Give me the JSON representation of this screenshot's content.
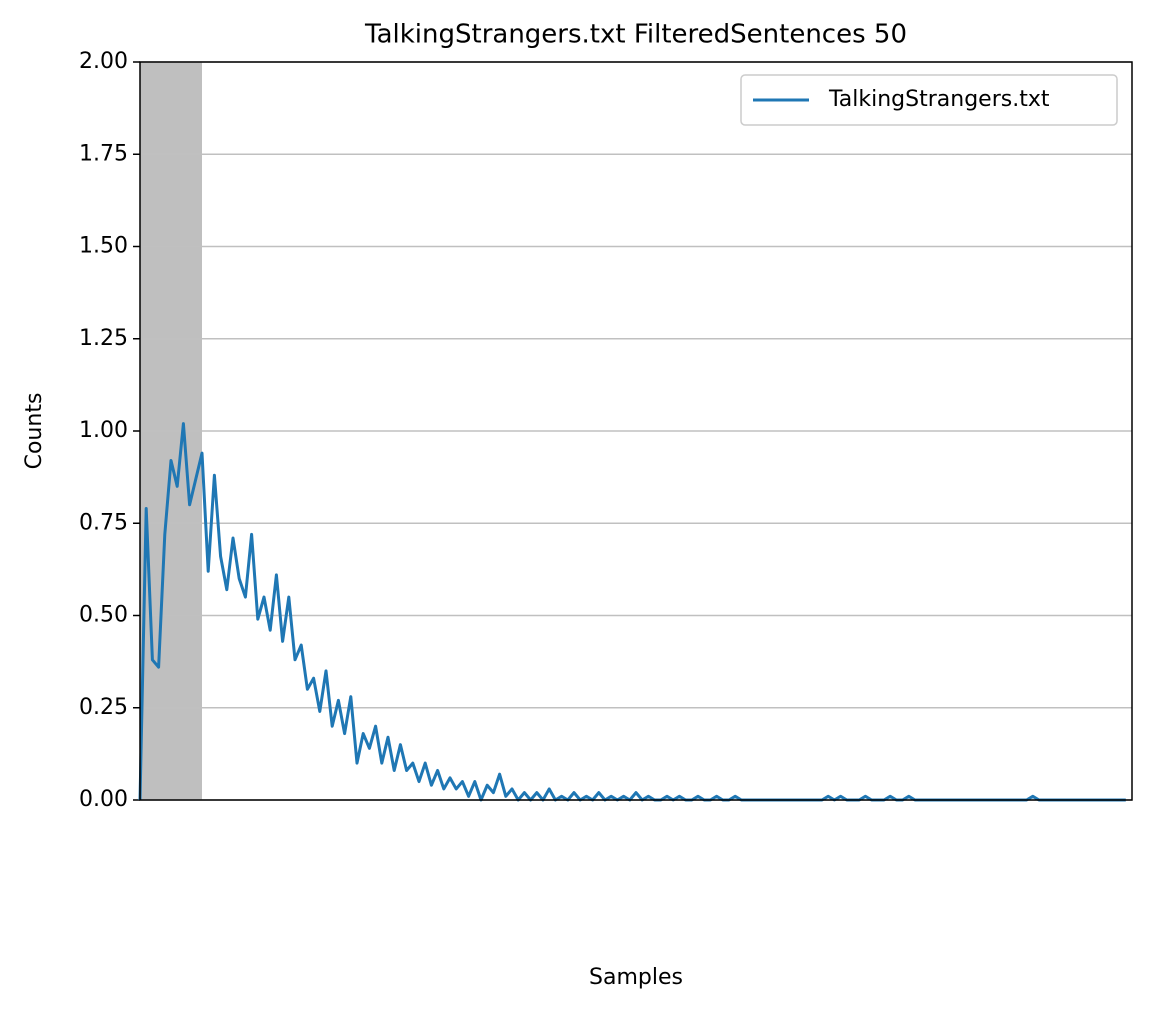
{
  "chart_data": {
    "type": "line",
    "title": "TalkingStrangers.txt FilteredSentences 50",
    "x_label": "Samples",
    "y_label": "Counts",
    "xlim": [
      0,
      160
    ],
    "shaded_xrange": [
      0,
      10
    ],
    "shade_color": "#bfbfbf",
    "ylim": [
      0,
      2
    ],
    "yticks": [
      {
        "value": 0,
        "label": "0.00"
      },
      {
        "value": 0.25,
        "label": "0.25"
      },
      {
        "value": 0.5,
        "label": "0.50"
      },
      {
        "value": 0.75,
        "label": "0.75"
      },
      {
        "value": 1,
        "label": "1.00"
      },
      {
        "value": 1.25,
        "label": "1.25"
      },
      {
        "value": 1.5,
        "label": "1.50"
      },
      {
        "value": 1.75,
        "label": "1.75"
      },
      {
        "value": 2,
        "label": "2.00"
      }
    ],
    "grid": "y",
    "legend": "upper right",
    "series": [
      {
        "name": "TalkingStrangers.txt",
        "color": "#1f77b4",
        "values": [
          0.0,
          0.79,
          0.38,
          0.36,
          0.72,
          0.92,
          0.85,
          1.02,
          0.8,
          0.87,
          0.94,
          0.62,
          0.88,
          0.66,
          0.57,
          0.71,
          0.6,
          0.55,
          0.72,
          0.49,
          0.55,
          0.46,
          0.61,
          0.43,
          0.55,
          0.38,
          0.42,
          0.3,
          0.33,
          0.24,
          0.35,
          0.2,
          0.27,
          0.18,
          0.28,
          0.1,
          0.18,
          0.14,
          0.2,
          0.1,
          0.17,
          0.08,
          0.15,
          0.08,
          0.1,
          0.05,
          0.1,
          0.04,
          0.08,
          0.03,
          0.06,
          0.03,
          0.05,
          0.01,
          0.05,
          0.0,
          0.04,
          0.02,
          0.07,
          0.01,
          0.03,
          0.0,
          0.02,
          0.0,
          0.02,
          0.0,
          0.03,
          0,
          0.01,
          0,
          0.02,
          0,
          0.01,
          0,
          0.02,
          0,
          0.01,
          0,
          0.01,
          0,
          0.02,
          0,
          0.01,
          0,
          0,
          0.01,
          0,
          0.01,
          0,
          0,
          0.01,
          0,
          0,
          0.01,
          0,
          0,
          0.01,
          0,
          0,
          0,
          0,
          0,
          0,
          0,
          0,
          0,
          0,
          0,
          0,
          0,
          0,
          0.01,
          0,
          0.01,
          0,
          0,
          0,
          0.01,
          0,
          0,
          0,
          0.01,
          0,
          0,
          0.01,
          0,
          0,
          0,
          0,
          0,
          0,
          0,
          0,
          0,
          0,
          0,
          0,
          0,
          0,
          0,
          0,
          0,
          0,
          0,
          0.01,
          0,
          0,
          0,
          0,
          0,
          0,
          0,
          0,
          0,
          0,
          0,
          0,
          0,
          0,
          0
        ]
      }
    ]
  }
}
